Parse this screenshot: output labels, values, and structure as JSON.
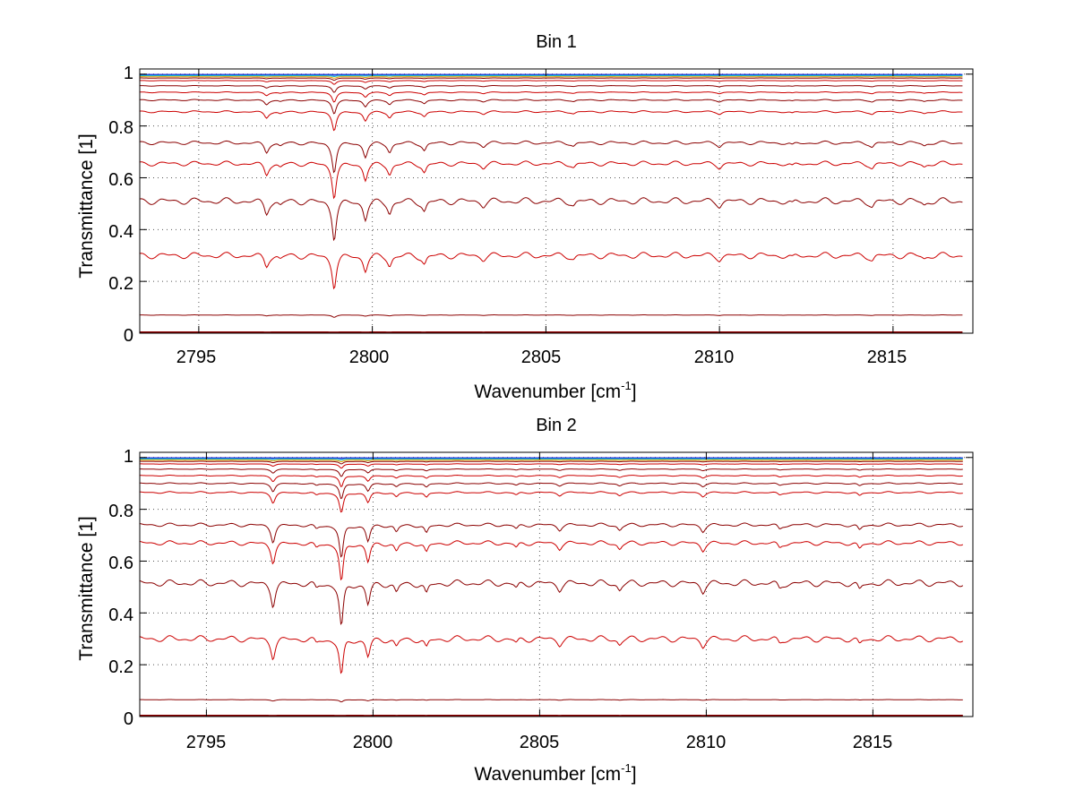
{
  "chart_data": [
    {
      "type": "line",
      "title": "Bin 1",
      "xlabel": "Wavenumber [cm",
      "xlabel_sup": "-1",
      "xlabel_end": "]",
      "ylabel": "Transmittance [1]",
      "xlim": [
        2793.3,
        2817.3
      ],
      "ylim": [
        0,
        1.02
      ],
      "x_range": [
        2793.3,
        2817.0
      ],
      "xticks": [
        2795,
        2800,
        2805,
        2810,
        2815
      ],
      "xtick_labels": [
        "2795",
        "2800",
        "2805",
        "2810",
        "2815"
      ],
      "yticks": [
        0,
        0.2,
        0.4,
        0.6,
        0.8,
        1
      ],
      "ytick_labels": [
        "0",
        "0.2",
        "0.4",
        "0.6",
        "0.8",
        "1"
      ],
      "grid": true,
      "line_colors": [
        "#0000cc",
        "#2060e0",
        "#20c0c0",
        "#e0a000",
        "#cc0000",
        "#8b0000"
      ],
      "series_baselines": [
        0.999,
        0.997,
        0.994,
        0.99,
        0.985,
        0.975,
        0.955,
        0.93,
        0.9,
        0.855,
        0.735,
        0.655,
        0.51,
        0.3,
        0.07,
        0.003
      ],
      "features": [
        {
          "x": 2796.95,
          "depth": 0.12
        },
        {
          "x": 2797.35,
          "depth": 0.04
        },
        {
          "x": 2798.9,
          "depth": 0.38
        },
        {
          "x": 2799.8,
          "depth": 0.18
        },
        {
          "x": 2800.5,
          "depth": 0.12
        },
        {
          "x": 2801.5,
          "depth": 0.1
        },
        {
          "x": 2803.2,
          "depth": 0.04
        },
        {
          "x": 2805.8,
          "depth": 0.04
        },
        {
          "x": 2810.0,
          "depth": 0.04
        },
        {
          "x": 2812.1,
          "depth": 0.04
        },
        {
          "x": 2814.4,
          "depth": 0.05
        },
        {
          "x": 2815.9,
          "depth": 0.04
        }
      ]
    },
    {
      "type": "line",
      "title": "Bin 2",
      "xlabel": "Wavenumber [cm",
      "xlabel_sup": "-1",
      "xlabel_end": "]",
      "ylabel": "Transmittance [1]",
      "xlim": [
        2793.0,
        2818.0
      ],
      "ylim": [
        0,
        1.02
      ],
      "x_range": [
        2793.0,
        2817.7
      ],
      "xticks": [
        2795,
        2800,
        2805,
        2810,
        2815
      ],
      "xtick_labels": [
        "2795",
        "2800",
        "2805",
        "2810",
        "2815"
      ],
      "yticks": [
        0,
        0.2,
        0.4,
        0.6,
        0.8,
        1
      ],
      "ytick_labels": [
        "0",
        "0.2",
        "0.4",
        "0.6",
        "0.8",
        "1"
      ],
      "grid": true,
      "line_colors": [
        "#0000cc",
        "#2060e0",
        "#20c0c0",
        "#e0a000",
        "#cc0000",
        "#8b0000"
      ],
      "series_baselines": [
        0.999,
        0.997,
        0.994,
        0.99,
        0.985,
        0.975,
        0.955,
        0.93,
        0.9,
        0.865,
        0.74,
        0.67,
        0.515,
        0.3,
        0.065,
        0.003
      ],
      "features": [
        {
          "x": 2797.0,
          "depth": 0.22
        },
        {
          "x": 2798.3,
          "depth": 0.06
        },
        {
          "x": 2799.05,
          "depth": 0.46
        },
        {
          "x": 2799.85,
          "depth": 0.22
        },
        {
          "x": 2800.7,
          "depth": 0.1
        },
        {
          "x": 2801.6,
          "depth": 0.12
        },
        {
          "x": 2804.3,
          "depth": 0.06
        },
        {
          "x": 2805.6,
          "depth": 0.06
        },
        {
          "x": 2807.4,
          "depth": 0.07
        },
        {
          "x": 2809.9,
          "depth": 0.08
        },
        {
          "x": 2812.2,
          "depth": 0.06
        },
        {
          "x": 2814.6,
          "depth": 0.08
        }
      ]
    }
  ]
}
